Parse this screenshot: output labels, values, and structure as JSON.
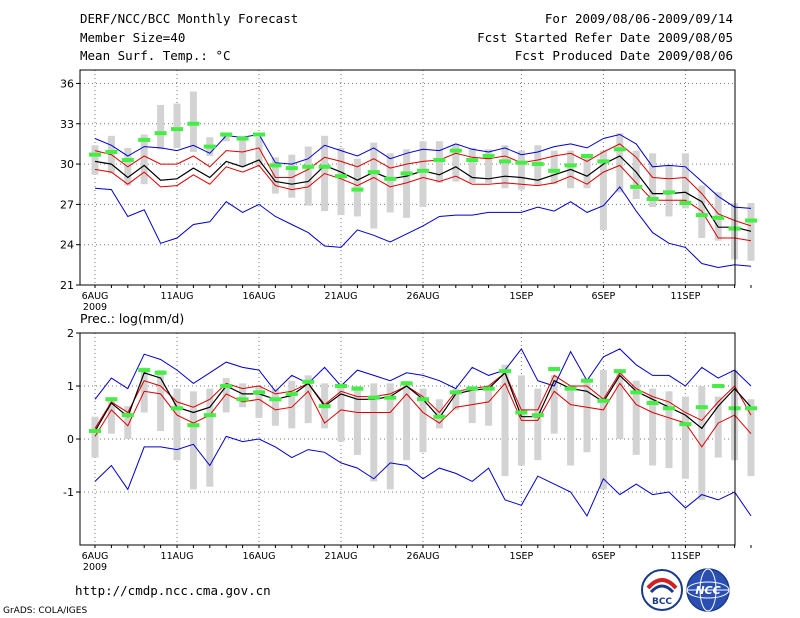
{
  "header": {
    "title": "DERF/NCC/BCC Monthly Forecast",
    "member_size": "Member Size=40",
    "variable": "Mean Surf. Temp.: °C",
    "period": "For 2009/08/06-2009/09/14",
    "fcst_started": "Fcst Started Refer Date 2009/08/05",
    "fcst_produced": "Fcst Produced Date 2009/08/06"
  },
  "footer": {
    "url": "http://cmdp.ncc.cma.gov.cn",
    "credit": "GrADS: COLA/IGES",
    "logo_bcc": "BCC",
    "logo_ncc": "NCC"
  },
  "colors": {
    "box": "#d3d3d3",
    "obs": "#44ee44",
    "ens_mean": "#000000",
    "spread": "#dd0000",
    "extreme": "#0000cc",
    "grid": "#777777"
  },
  "chart_data": [
    {
      "type": "box",
      "title": "Mean Surf. Temp.: °C",
      "ylim": [
        21,
        37
      ],
      "yticks": [
        21,
        24,
        27,
        30,
        33,
        36
      ],
      "xticks": [
        {
          "day": 0,
          "label": "6AUG"
        },
        {
          "day": 5,
          "label": "11AUG"
        },
        {
          "day": 10,
          "label": "16AUG"
        },
        {
          "day": 15,
          "label": "21AUG"
        },
        {
          "day": 20,
          "label": "26AUG"
        },
        {
          "day": 26,
          "label": "1SEP"
        },
        {
          "day": 31,
          "label": "6SEP"
        },
        {
          "day": 36,
          "label": "11SEP"
        }
      ],
      "year_label": "2009",
      "series": [
        {
          "name": "max",
          "values": [
            31.9,
            31.4,
            30.6,
            31.3,
            31.2,
            31.0,
            31.4,
            30.8,
            32.1,
            32.0,
            32.2,
            30.1,
            30.0,
            30.4,
            31.4,
            31.0,
            30.6,
            31.2,
            30.4,
            30.8,
            31.1,
            31.0,
            31.5,
            31.1,
            30.9,
            31.2,
            30.7,
            30.9,
            31.3,
            31.5,
            31.2,
            31.9,
            32.2,
            31.5,
            29.8,
            29.9,
            29.8,
            28.7,
            27.6,
            26.8,
            26.7
          ]
        },
        {
          "name": "upper",
          "values": [
            31.0,
            30.7,
            29.8,
            30.6,
            30.0,
            30.0,
            30.6,
            29.8,
            31.0,
            30.9,
            31.2,
            29.0,
            29.0,
            29.6,
            30.5,
            30.2,
            29.8,
            30.4,
            29.7,
            30.0,
            30.2,
            30.3,
            30.8,
            30.5,
            30.4,
            30.6,
            30.1,
            30.3,
            30.6,
            30.8,
            30.2,
            30.9,
            31.5,
            30.5,
            29.0,
            28.9,
            29.0,
            27.8,
            26.3,
            25.8,
            25.4
          ]
        },
        {
          "name": "mean",
          "values": [
            30.2,
            30.0,
            29.0,
            29.9,
            28.8,
            28.9,
            29.7,
            29.0,
            30.2,
            29.8,
            30.3,
            28.7,
            28.5,
            28.7,
            29.9,
            29.4,
            28.8,
            29.4,
            28.9,
            29.1,
            29.5,
            29.2,
            29.8,
            29.0,
            28.9,
            29.1,
            29.0,
            28.8,
            29.2,
            29.6,
            29.1,
            30.0,
            30.6,
            29.4,
            27.8,
            27.8,
            27.9,
            27.2,
            25.3,
            25.3,
            25.0
          ]
        },
        {
          "name": "lower",
          "values": [
            29.6,
            29.4,
            28.5,
            29.4,
            28.3,
            28.4,
            29.2,
            28.5,
            29.8,
            29.4,
            29.9,
            28.4,
            28.1,
            28.3,
            29.3,
            28.9,
            28.4,
            29.0,
            28.3,
            28.6,
            29.0,
            28.7,
            29.1,
            28.5,
            28.5,
            28.6,
            28.5,
            28.4,
            28.6,
            29.1,
            28.5,
            29.4,
            29.9,
            28.6,
            27.3,
            27.3,
            27.3,
            26.5,
            24.5,
            24.5,
            24.3
          ]
        },
        {
          "name": "min",
          "values": [
            28.2,
            28.1,
            26.1,
            26.6,
            24.1,
            24.5,
            25.5,
            25.7,
            27.2,
            26.4,
            27.0,
            26.1,
            25.5,
            24.9,
            23.9,
            23.8,
            25.1,
            24.7,
            24.2,
            24.8,
            25.4,
            26.1,
            26.2,
            26.2,
            26.4,
            26.4,
            26.4,
            26.8,
            26.5,
            27.2,
            26.4,
            26.9,
            28.3,
            26.5,
            24.9,
            24.1,
            23.8,
            22.6,
            22.3,
            22.5,
            22.4
          ]
        },
        {
          "name": "observed",
          "values": [
            30.7,
            30.9,
            30.3,
            31.8,
            32.3,
            32.6,
            33.0,
            31.3,
            32.2,
            31.9,
            32.2,
            29.9,
            29.7,
            29.8,
            29.8,
            29.1,
            28.1,
            29.4,
            28.9,
            29.3,
            29.5,
            30.3,
            31.0,
            30.3,
            30.6,
            30.2,
            30.1,
            30.0,
            29.5,
            29.9,
            30.6,
            30.2,
            31.1,
            28.3,
            27.4,
            27.9,
            27.1,
            26.2,
            26.0,
            25.2,
            25.8
          ]
        },
        {
          "name": "box_high",
          "values": [
            31.4,
            32.1,
            31.2,
            32.2,
            34.4,
            34.5,
            35.4,
            32.0,
            32.2,
            32.1,
            32.0,
            30.5,
            30.7,
            31.3,
            32.1,
            31.2,
            30.4,
            31.6,
            30.8,
            31.1,
            31.7,
            31.7,
            31.5,
            31.2,
            31.1,
            31.4,
            31.0,
            31.4,
            31.0,
            31.0,
            30.7,
            31.0,
            32.3,
            31.0,
            30.8,
            29.9,
            30.8,
            28.4,
            27.9,
            27.1,
            27.1
          ]
        },
        {
          "name": "box_low",
          "values": [
            29.2,
            29.3,
            28.4,
            28.5,
            31.1,
            31.2,
            30.9,
            30.6,
            31.7,
            29.8,
            29.9,
            27.8,
            27.5,
            26.9,
            26.5,
            26.2,
            26.1,
            25.2,
            26.4,
            26.0,
            26.8,
            28.6,
            28.7,
            28.6,
            28.6,
            28.2,
            28.1,
            28.4,
            28.5,
            28.2,
            28.2,
            25.1,
            27.9,
            27.4,
            26.8,
            26.1,
            26.7,
            24.5,
            24.3,
            22.9,
            22.8
          ]
        }
      ]
    },
    {
      "type": "box",
      "title": "Prec.: log(mm/d)",
      "ylim": [
        -2,
        2
      ],
      "yticks": [
        -1,
        0,
        1,
        2
      ],
      "xticks": [
        {
          "day": 0,
          "label": "6AUG"
        },
        {
          "day": 5,
          "label": "11AUG"
        },
        {
          "day": 10,
          "label": "16AUG"
        },
        {
          "day": 15,
          "label": "21AUG"
        },
        {
          "day": 20,
          "label": "26AUG"
        },
        {
          "day": 26,
          "label": "1SEP"
        },
        {
          "day": 31,
          "label": "6SEP"
        },
        {
          "day": 36,
          "label": "11SEP"
        }
      ],
      "year_label": "2009",
      "series": [
        {
          "name": "max",
          "values": [
            0.75,
            1.15,
            0.95,
            1.6,
            1.5,
            1.3,
            1.05,
            1.25,
            1.45,
            1.35,
            1.3,
            0.9,
            1.2,
            1.05,
            1.35,
            1.0,
            1.3,
            1.2,
            1.1,
            1.25,
            1.2,
            1.1,
            0.95,
            1.35,
            1.2,
            1.3,
            1.7,
            1.1,
            1.0,
            1.65,
            1.1,
            1.55,
            1.7,
            1.4,
            1.2,
            1.2,
            1.0,
            1.35,
            1.15,
            1.3,
            1.0
          ]
        },
        {
          "name": "upper",
          "values": [
            0.2,
            0.7,
            0.5,
            1.1,
            1.0,
            0.7,
            0.6,
            0.75,
            1.05,
            0.95,
            1.0,
            0.85,
            0.9,
            1.05,
            0.65,
            0.9,
            0.8,
            0.8,
            0.85,
            1.0,
            0.8,
            0.5,
            0.9,
            0.95,
            1.0,
            1.25,
            0.55,
            0.55,
            1.2,
            1.0,
            1.0,
            0.75,
            1.25,
            0.95,
            0.8,
            0.7,
            0.5,
            0.35,
            0.7,
            1.0,
            0.45
          ]
        },
        {
          "name": "mean",
          "values": [
            0.15,
            0.68,
            0.42,
            1.25,
            1.15,
            0.6,
            0.5,
            0.6,
            1.0,
            0.85,
            0.85,
            0.75,
            0.82,
            1.05,
            0.62,
            0.85,
            0.75,
            0.75,
            0.8,
            1.0,
            0.75,
            0.4,
            0.85,
            0.92,
            0.95,
            1.25,
            0.42,
            0.42,
            1.1,
            0.95,
            0.9,
            0.7,
            1.2,
            0.9,
            0.75,
            0.6,
            0.45,
            0.2,
            0.62,
            0.95,
            0.6
          ]
        },
        {
          "name": "lower",
          "values": [
            0.05,
            0.55,
            0.25,
            0.9,
            0.85,
            0.45,
            0.3,
            0.45,
            0.85,
            0.7,
            0.75,
            0.55,
            0.6,
            0.9,
            0.3,
            0.55,
            0.5,
            0.5,
            0.5,
            0.85,
            0.5,
            0.3,
            0.6,
            0.65,
            0.7,
            1.05,
            0.35,
            0.35,
            0.9,
            0.65,
            0.6,
            0.55,
            1.05,
            0.65,
            0.5,
            0.4,
            0.3,
            -0.15,
            0.3,
            0.45,
            0.1
          ]
        },
        {
          "name": "min",
          "values": [
            -0.8,
            -0.5,
            -0.95,
            -0.15,
            -0.15,
            -0.2,
            -0.1,
            -0.5,
            0.05,
            -0.05,
            0.0,
            -0.15,
            -0.35,
            -0.2,
            -0.25,
            -0.45,
            -0.55,
            -0.75,
            -0.45,
            -0.5,
            -0.75,
            -0.55,
            -0.65,
            -0.8,
            -0.55,
            -1.15,
            -1.25,
            -0.7,
            -0.85,
            -1.0,
            -1.45,
            -0.75,
            -1.05,
            -0.85,
            -1.05,
            -1.0,
            -1.3,
            -1.05,
            -1.15,
            -1.0,
            -1.45
          ]
        },
        {
          "name": "observed",
          "values": [
            0.15,
            0.75,
            0.45,
            1.3,
            1.25,
            0.58,
            0.26,
            0.45,
            1.0,
            0.75,
            0.88,
            0.75,
            0.85,
            1.08,
            0.62,
            1.0,
            0.95,
            0.78,
            0.78,
            1.05,
            0.75,
            0.42,
            0.88,
            0.95,
            0.95,
            1.28,
            0.5,
            0.45,
            1.32,
            0.95,
            1.1,
            0.72,
            1.28,
            0.88,
            0.68,
            0.58,
            0.28,
            0.6,
            1.0,
            0.58,
            0.58
          ]
        },
        {
          "name": "box_high",
          "values": [
            0.42,
            0.75,
            0.62,
            1.35,
            1.3,
            0.95,
            0.9,
            0.95,
            1.15,
            1.05,
            1.0,
            0.95,
            1.1,
            1.2,
            1.05,
            1.05,
            1.0,
            1.05,
            1.05,
            1.1,
            0.95,
            0.75,
            0.95,
            1.0,
            1.0,
            1.4,
            1.2,
            0.95,
            1.2,
            1.0,
            1.15,
            1.3,
            1.3,
            1.1,
            0.95,
            0.9,
            0.8,
            1.0,
            0.8,
            1.3,
            0.75
          ]
        },
        {
          "name": "box_low",
          "values": [
            -0.35,
            0.1,
            0.0,
            0.5,
            0.15,
            -0.4,
            -0.95,
            -0.9,
            0.5,
            0.6,
            0.4,
            0.25,
            0.2,
            0.3,
            0.2,
            -0.05,
            -0.3,
            -0.8,
            -0.95,
            -0.4,
            -0.25,
            0.2,
            0.55,
            0.3,
            0.25,
            -0.7,
            -0.5,
            -0.4,
            0.1,
            -0.5,
            -0.25,
            -0.95,
            0.0,
            -0.3,
            -0.5,
            -0.55,
            -0.75,
            -1.15,
            -0.35,
            -0.4,
            -0.7
          ]
        }
      ]
    }
  ]
}
